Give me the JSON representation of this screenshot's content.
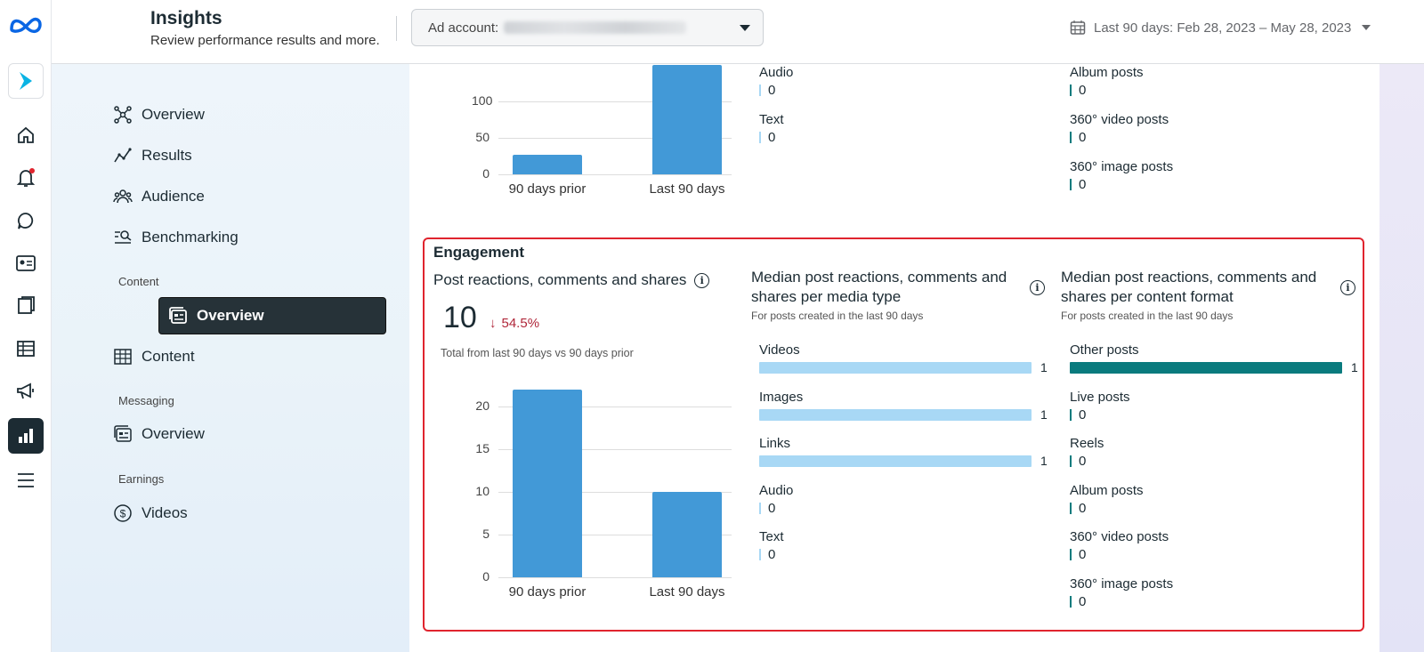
{
  "header": {
    "title": "Insights",
    "subtitle": "Review performance results and more.",
    "ad_account_label": "Ad account:",
    "date_range": "Last 90 days: Feb 28, 2023 – May 28, 2023"
  },
  "rail": {
    "icons": [
      "meta-logo-icon",
      "app-icon",
      "home-icon",
      "notifications-icon",
      "messages-icon",
      "contacts-icon",
      "content-icon",
      "table-icon",
      "ads-icon",
      "insights-icon",
      "menu-icon"
    ]
  },
  "sidebar": {
    "items": [
      {
        "label": "Overview",
        "icon": "overview-icon"
      },
      {
        "label": "Results",
        "icon": "results-icon"
      },
      {
        "label": "Audience",
        "icon": "audience-icon"
      },
      {
        "label": "Benchmarking",
        "icon": "benchmarking-icon"
      }
    ],
    "content_section": "Content",
    "content_items": [
      {
        "label": "Overview",
        "active": true
      },
      {
        "label": "Content"
      }
    ],
    "messaging_section": "Messaging",
    "messaging_items": [
      {
        "label": "Overview"
      }
    ],
    "earnings_section": "Earnings",
    "earnings_items": [
      {
        "label": "Videos"
      }
    ]
  },
  "top_section": {
    "chart": {
      "type": "bar",
      "categories": [
        "90 days prior",
        "Last 90 days"
      ],
      "values": [
        27,
        150
      ],
      "yticks": [
        "0",
        "50",
        "100"
      ],
      "ylim": [
        0,
        160
      ]
    },
    "media_rows": [
      {
        "label": "Audio",
        "value": "0"
      },
      {
        "label": "Text",
        "value": "0"
      }
    ],
    "format_rows": [
      {
        "label": "Album posts",
        "value": "0"
      },
      {
        "label": "360° video posts",
        "value": "0"
      },
      {
        "label": "360° image posts",
        "value": "0"
      }
    ]
  },
  "engagement": {
    "heading": "Engagement",
    "col1_title": "Post reactions, comments and shares",
    "total": "10",
    "change": "54.5%",
    "total_caption": "Total from last 90 days vs 90 days prior",
    "col2_title_line1": "Median post reactions, comments and",
    "col2_title_line2": "shares per media type",
    "col2_caption": "For posts created in the last 90 days",
    "col3_title_line1": "Median post reactions, comments and",
    "col3_title_line2": "shares per content format",
    "col3_caption": "For posts created in the last 90 days",
    "media_rows": [
      {
        "label": "Videos",
        "value": "1",
        "fraction": 1
      },
      {
        "label": "Images",
        "value": "1",
        "fraction": 1
      },
      {
        "label": "Links",
        "value": "1",
        "fraction": 1
      },
      {
        "label": "Audio",
        "value": "0",
        "fraction": 0
      },
      {
        "label": "Text",
        "value": "0",
        "fraction": 0
      }
    ],
    "format_rows": [
      {
        "label": "Other posts",
        "value": "1",
        "fraction": 1
      },
      {
        "label": "Live posts",
        "value": "0",
        "fraction": 0
      },
      {
        "label": "Reels",
        "value": "0",
        "fraction": 0
      },
      {
        "label": "Album posts",
        "value": "0",
        "fraction": 0
      },
      {
        "label": "360° video posts",
        "value": "0",
        "fraction": 0
      },
      {
        "label": "360° image posts",
        "value": "0",
        "fraction": 0
      }
    ]
  },
  "chart_data": {
    "type": "bar",
    "categories": [
      "90 days prior",
      "Last 90 days"
    ],
    "values": [
      22,
      10
    ],
    "yticks": [
      "0",
      "5",
      "10",
      "15",
      "20"
    ],
    "ylim": [
      0,
      22
    ],
    "title": "Post reactions, comments and shares"
  },
  "colors": {
    "bar": "#4299d7",
    "media_bar": "#a8d8f5",
    "format_bar": "#0a7b7e",
    "highlight": "#e0242e",
    "decrease": "#b0273a"
  }
}
